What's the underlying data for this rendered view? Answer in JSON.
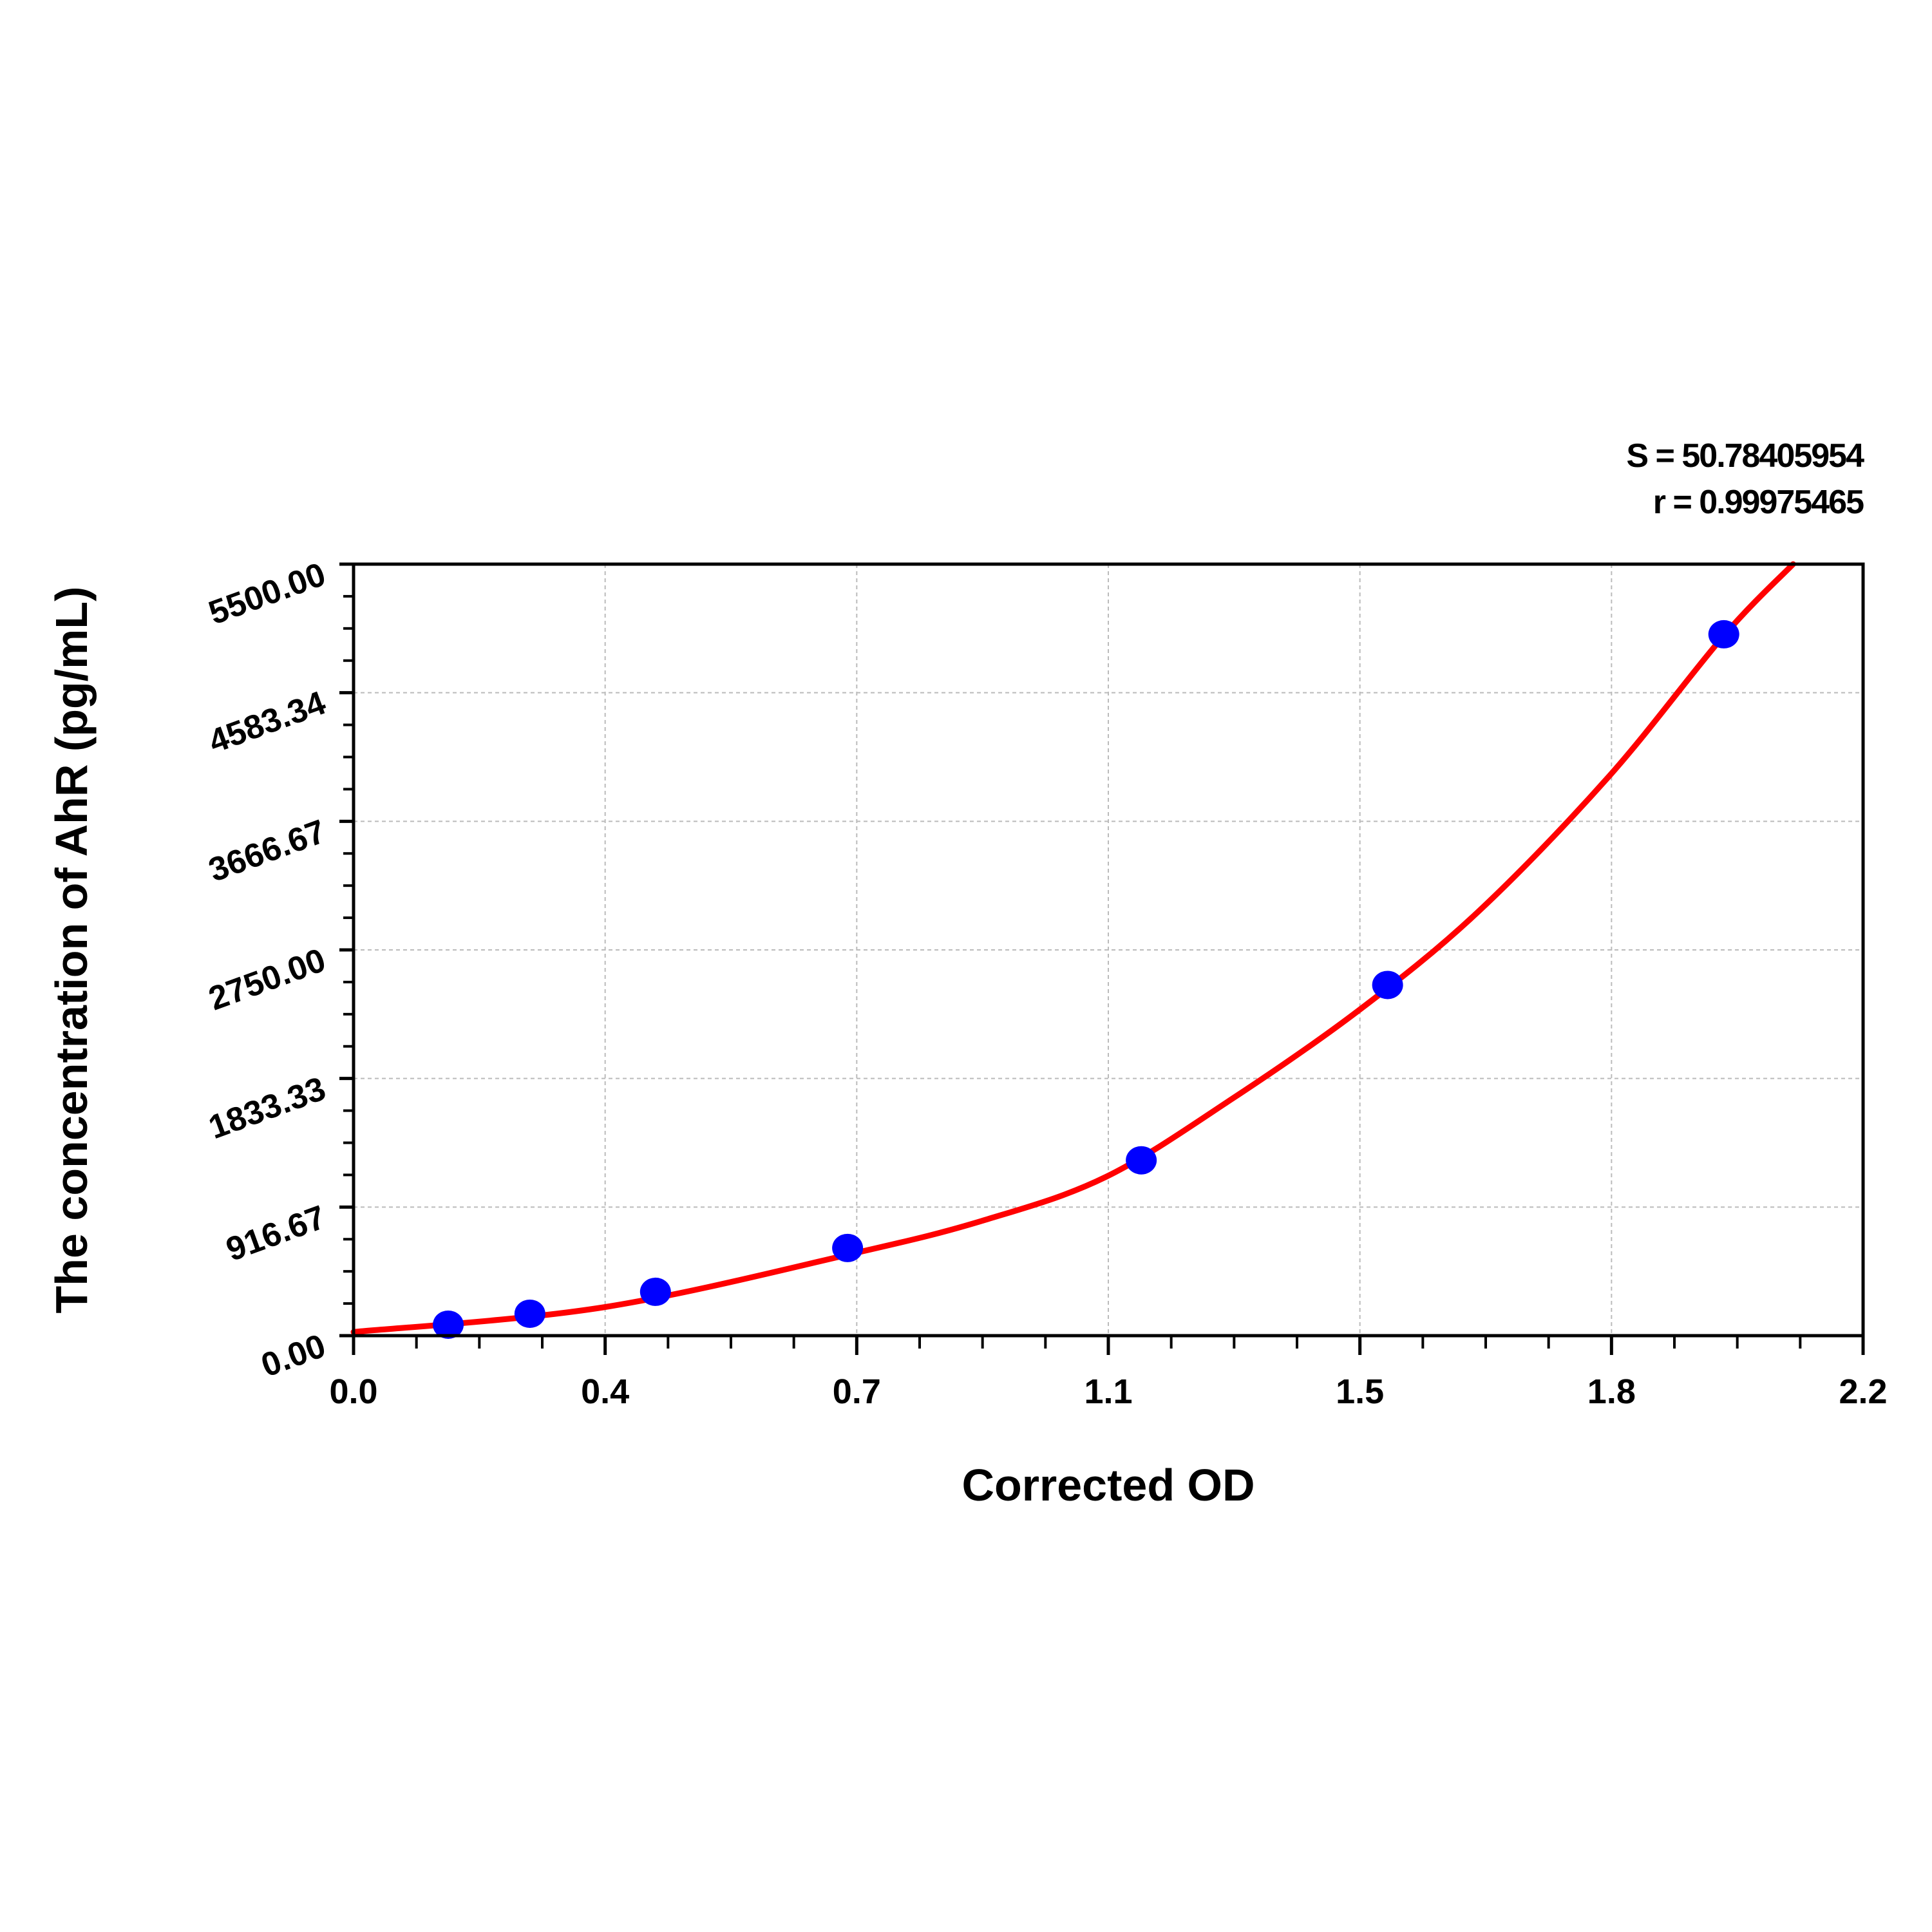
{
  "chart_data": {
    "type": "scatter",
    "xlabel": "Corrected OD",
    "ylabel": "The concentration of AhR (pg/mL)",
    "xlim": [
      0,
      2.2
    ],
    "ylim": [
      0,
      5500
    ],
    "x_tick_labels": [
      "0.0",
      "0.4",
      "0.7",
      "1.1",
      "1.5",
      "1.8",
      "2.2"
    ],
    "y_tick_labels": [
      "0.00",
      "916.67",
      "1833.33",
      "2750.00",
      "3666.67",
      "4583.34",
      "5500.00"
    ],
    "grid": true,
    "annotations": [
      "S = 50.78405954",
      "r = 0.99975465"
    ],
    "series": [
      {
        "type": "scatter",
        "color": "#0000ff",
        "x": [
          0.138,
          0.257,
          0.44,
          0.72,
          1.148,
          1.507,
          1.997
        ],
        "y": [
          78.125,
          156.25,
          312.5,
          625,
          1250,
          2500,
          5000
        ]
      },
      {
        "type": "line",
        "color": "#ff0000",
        "x": [
          0,
          0.364,
          0.731,
          0.921,
          1.097,
          1.28,
          1.465,
          1.639,
          1.83,
          1.997,
          2.098
        ],
        "y": [
          26,
          202,
          589,
          826,
          1133,
          1687,
          2319,
          3022,
          3989,
          4990,
          5500
        ]
      }
    ]
  }
}
